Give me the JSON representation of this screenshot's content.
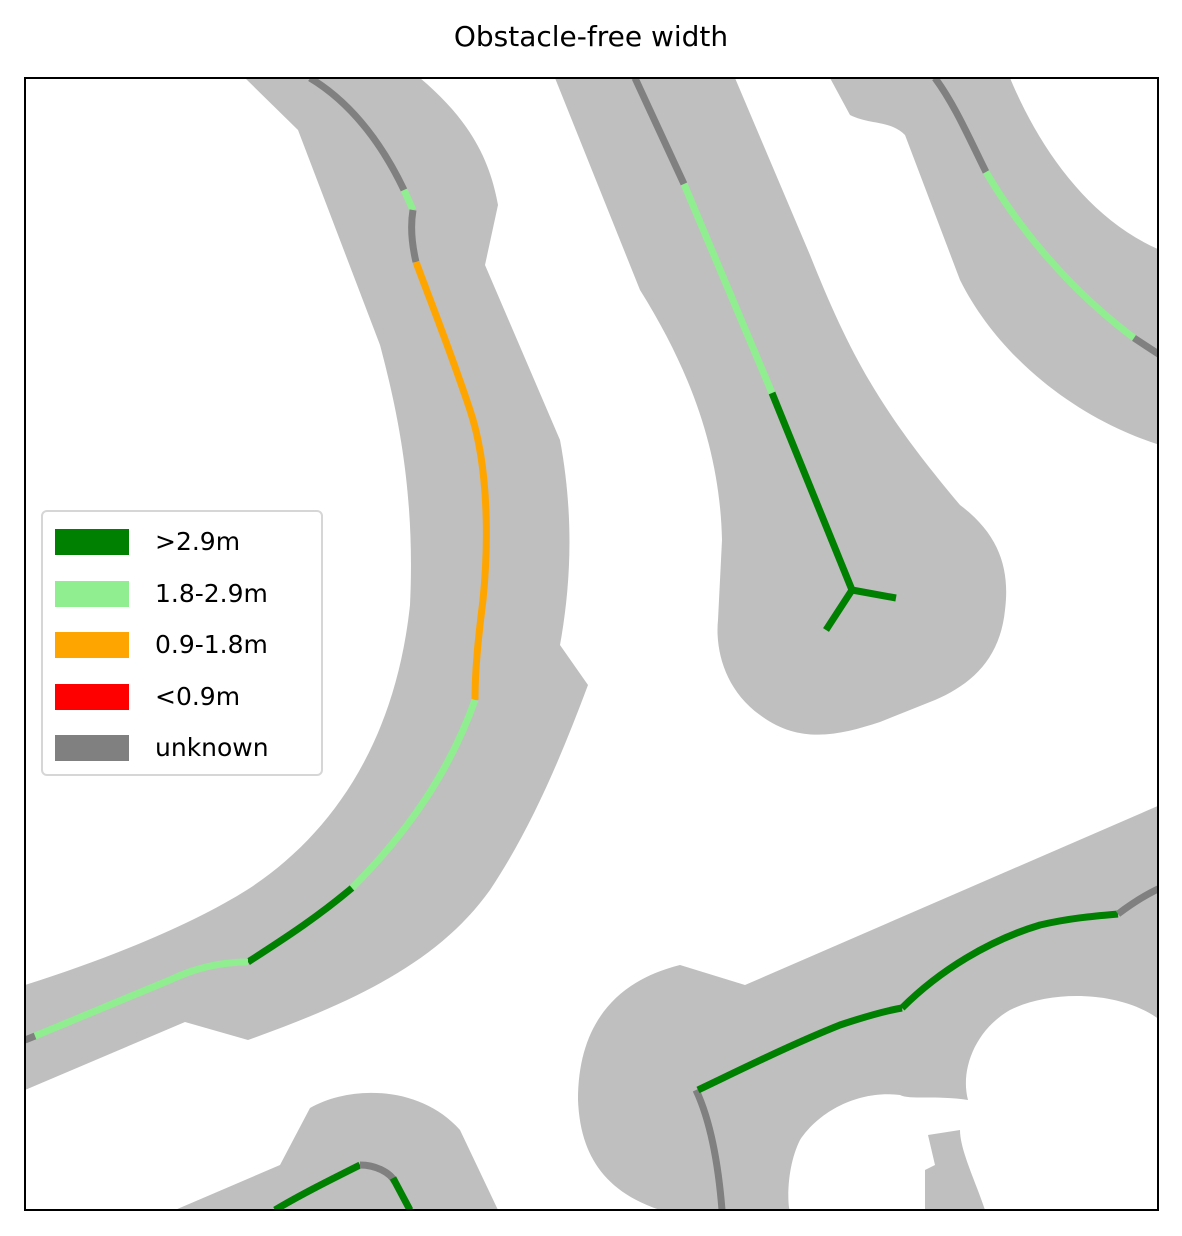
{
  "title": "Obstacle-free width",
  "legend": {
    "items": [
      {
        "key": "wide",
        "label": ">2.9m",
        "color": "#008000"
      },
      {
        "key": "medium",
        "label": "1.8-2.9m",
        "color": "#90ee90"
      },
      {
        "key": "narrow",
        "label": "0.9-1.8m",
        "color": "#ffa500"
      },
      {
        "key": "very-narrow",
        "label": "<0.9m",
        "color": "#ff0000"
      },
      {
        "key": "unknown",
        "label": "unknown",
        "color": "#808080"
      }
    ]
  },
  "colors": {
    "walkable_area": "#bfbfbf",
    "background": "#ffffff",
    "frame": "#000000"
  }
}
